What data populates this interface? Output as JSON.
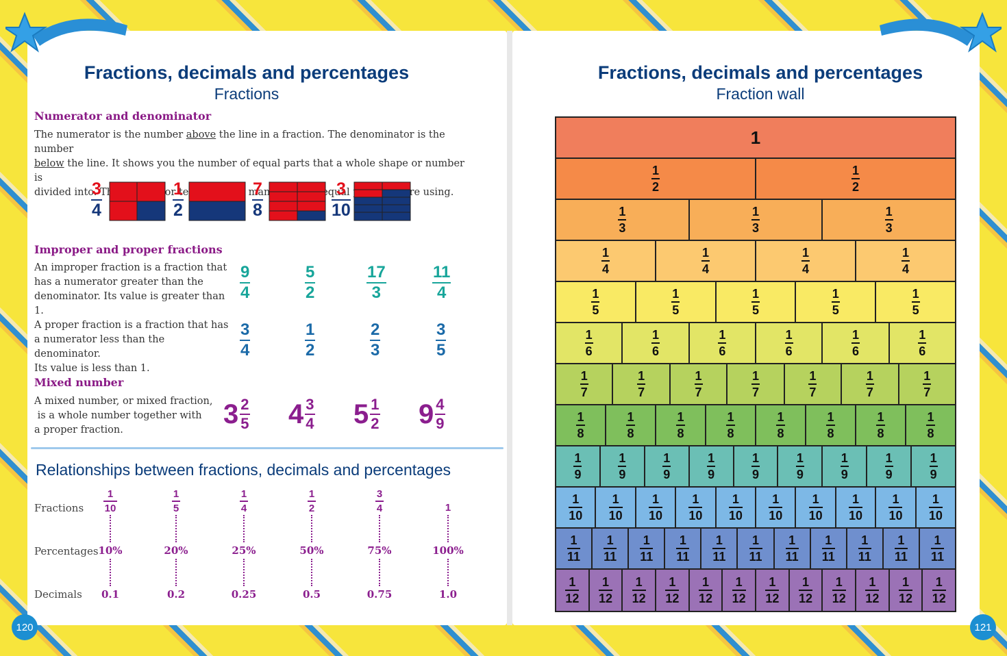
{
  "left": {
    "page_number": "120",
    "title": "Fractions, decimals and percentages",
    "subtitle": "Fractions",
    "numden": {
      "heading": "Numerator and denominator",
      "p1a": "The numerator is the number ",
      "p1u": "above",
      "p1b": " the line in a fraction. The denominator is the number",
      "p2u": "below",
      "p2b": " the line. It shows you the number of equal parts that a whole shape or number is",
      "p3": "divided into. The numerator tells you how many of these equal parts you are using.",
      "examples": [
        {
          "num": "3",
          "den": "4"
        },
        {
          "num": "1",
          "den": "2"
        },
        {
          "num": "7",
          "den": "8"
        },
        {
          "num": "3",
          "den": "10"
        }
      ]
    },
    "improper": {
      "heading": "Improper and proper fractions",
      "improper_text": [
        "An improper fraction is a fraction that",
        "has a numerator greater than the",
        "denominator. Its value is greater than 1."
      ],
      "improper_examples": [
        {
          "num": "9",
          "den": "4"
        },
        {
          "num": "5",
          "den": "2"
        },
        {
          "num": "17",
          "den": "3"
        },
        {
          "num": "11",
          "den": "4"
        }
      ],
      "proper_text": [
        "A proper fraction is a fraction that has",
        "a numerator less than the denominator.",
        "Its value is less than 1."
      ],
      "proper_examples": [
        {
          "num": "3",
          "den": "4"
        },
        {
          "num": "1",
          "den": "2"
        },
        {
          "num": "2",
          "den": "3"
        },
        {
          "num": "3",
          "den": "5"
        }
      ]
    },
    "mixed": {
      "heading": "Mixed number",
      "text": [
        "A mixed number, or mixed fraction,",
        " is a whole number together with",
        "a proper fraction."
      ],
      "examples": [
        {
          "whole": "3",
          "num": "2",
          "den": "5"
        },
        {
          "whole": "4",
          "num": "3",
          "den": "4"
        },
        {
          "whole": "5",
          "num": "1",
          "den": "2"
        },
        {
          "whole": "9",
          "num": "4",
          "den": "9"
        }
      ]
    },
    "relationships": {
      "title": "Relationships between fractions, decimals and percentages",
      "row_labels": {
        "fractions": "Fractions",
        "percentages": "Percentages",
        "decimals": "Decimals"
      },
      "columns": [
        {
          "num": "1",
          "den": "10",
          "pct": "10%",
          "dec": "0.1"
        },
        {
          "num": "1",
          "den": "5",
          "pct": "20%",
          "dec": "0.2"
        },
        {
          "num": "1",
          "den": "4",
          "pct": "25%",
          "dec": "0.25"
        },
        {
          "num": "1",
          "den": "2",
          "pct": "50%",
          "dec": "0.5"
        },
        {
          "num": "3",
          "den": "4",
          "pct": "75%",
          "dec": "0.75"
        },
        {
          "whole": "1",
          "pct": "100%",
          "dec": "1.0"
        }
      ]
    }
  },
  "right": {
    "page_number": "121",
    "title": "Fractions, decimals and percentages",
    "subtitle": "Fraction wall",
    "wall": {
      "whole": "1",
      "rows": [
        {
          "den": "2",
          "color": "#f58a48"
        },
        {
          "den": "3",
          "color": "#f8ae58"
        },
        {
          "den": "4",
          "color": "#fcc970"
        },
        {
          "den": "5",
          "color": "#f9ea64"
        },
        {
          "den": "6",
          "color": "#e2e566"
        },
        {
          "den": "7",
          "color": "#b6d25e"
        },
        {
          "den": "8",
          "color": "#7fbf5c"
        },
        {
          "den": "9",
          "color": "#6bbfb5"
        },
        {
          "den": "10",
          "color": "#7db8e6"
        },
        {
          "den": "11",
          "color": "#6f8fce"
        },
        {
          "den": "12",
          "color": "#9b72b6"
        }
      ],
      "whole_color": "#f07e5c"
    }
  },
  "colors": {
    "title": "#0b3c7a",
    "heading": "#8a1a86",
    "teal": "#17a59a",
    "blue": "#1b6aa8",
    "purple": "#8b1e8e",
    "red": "#e3101b",
    "navy": "#15377a"
  }
}
